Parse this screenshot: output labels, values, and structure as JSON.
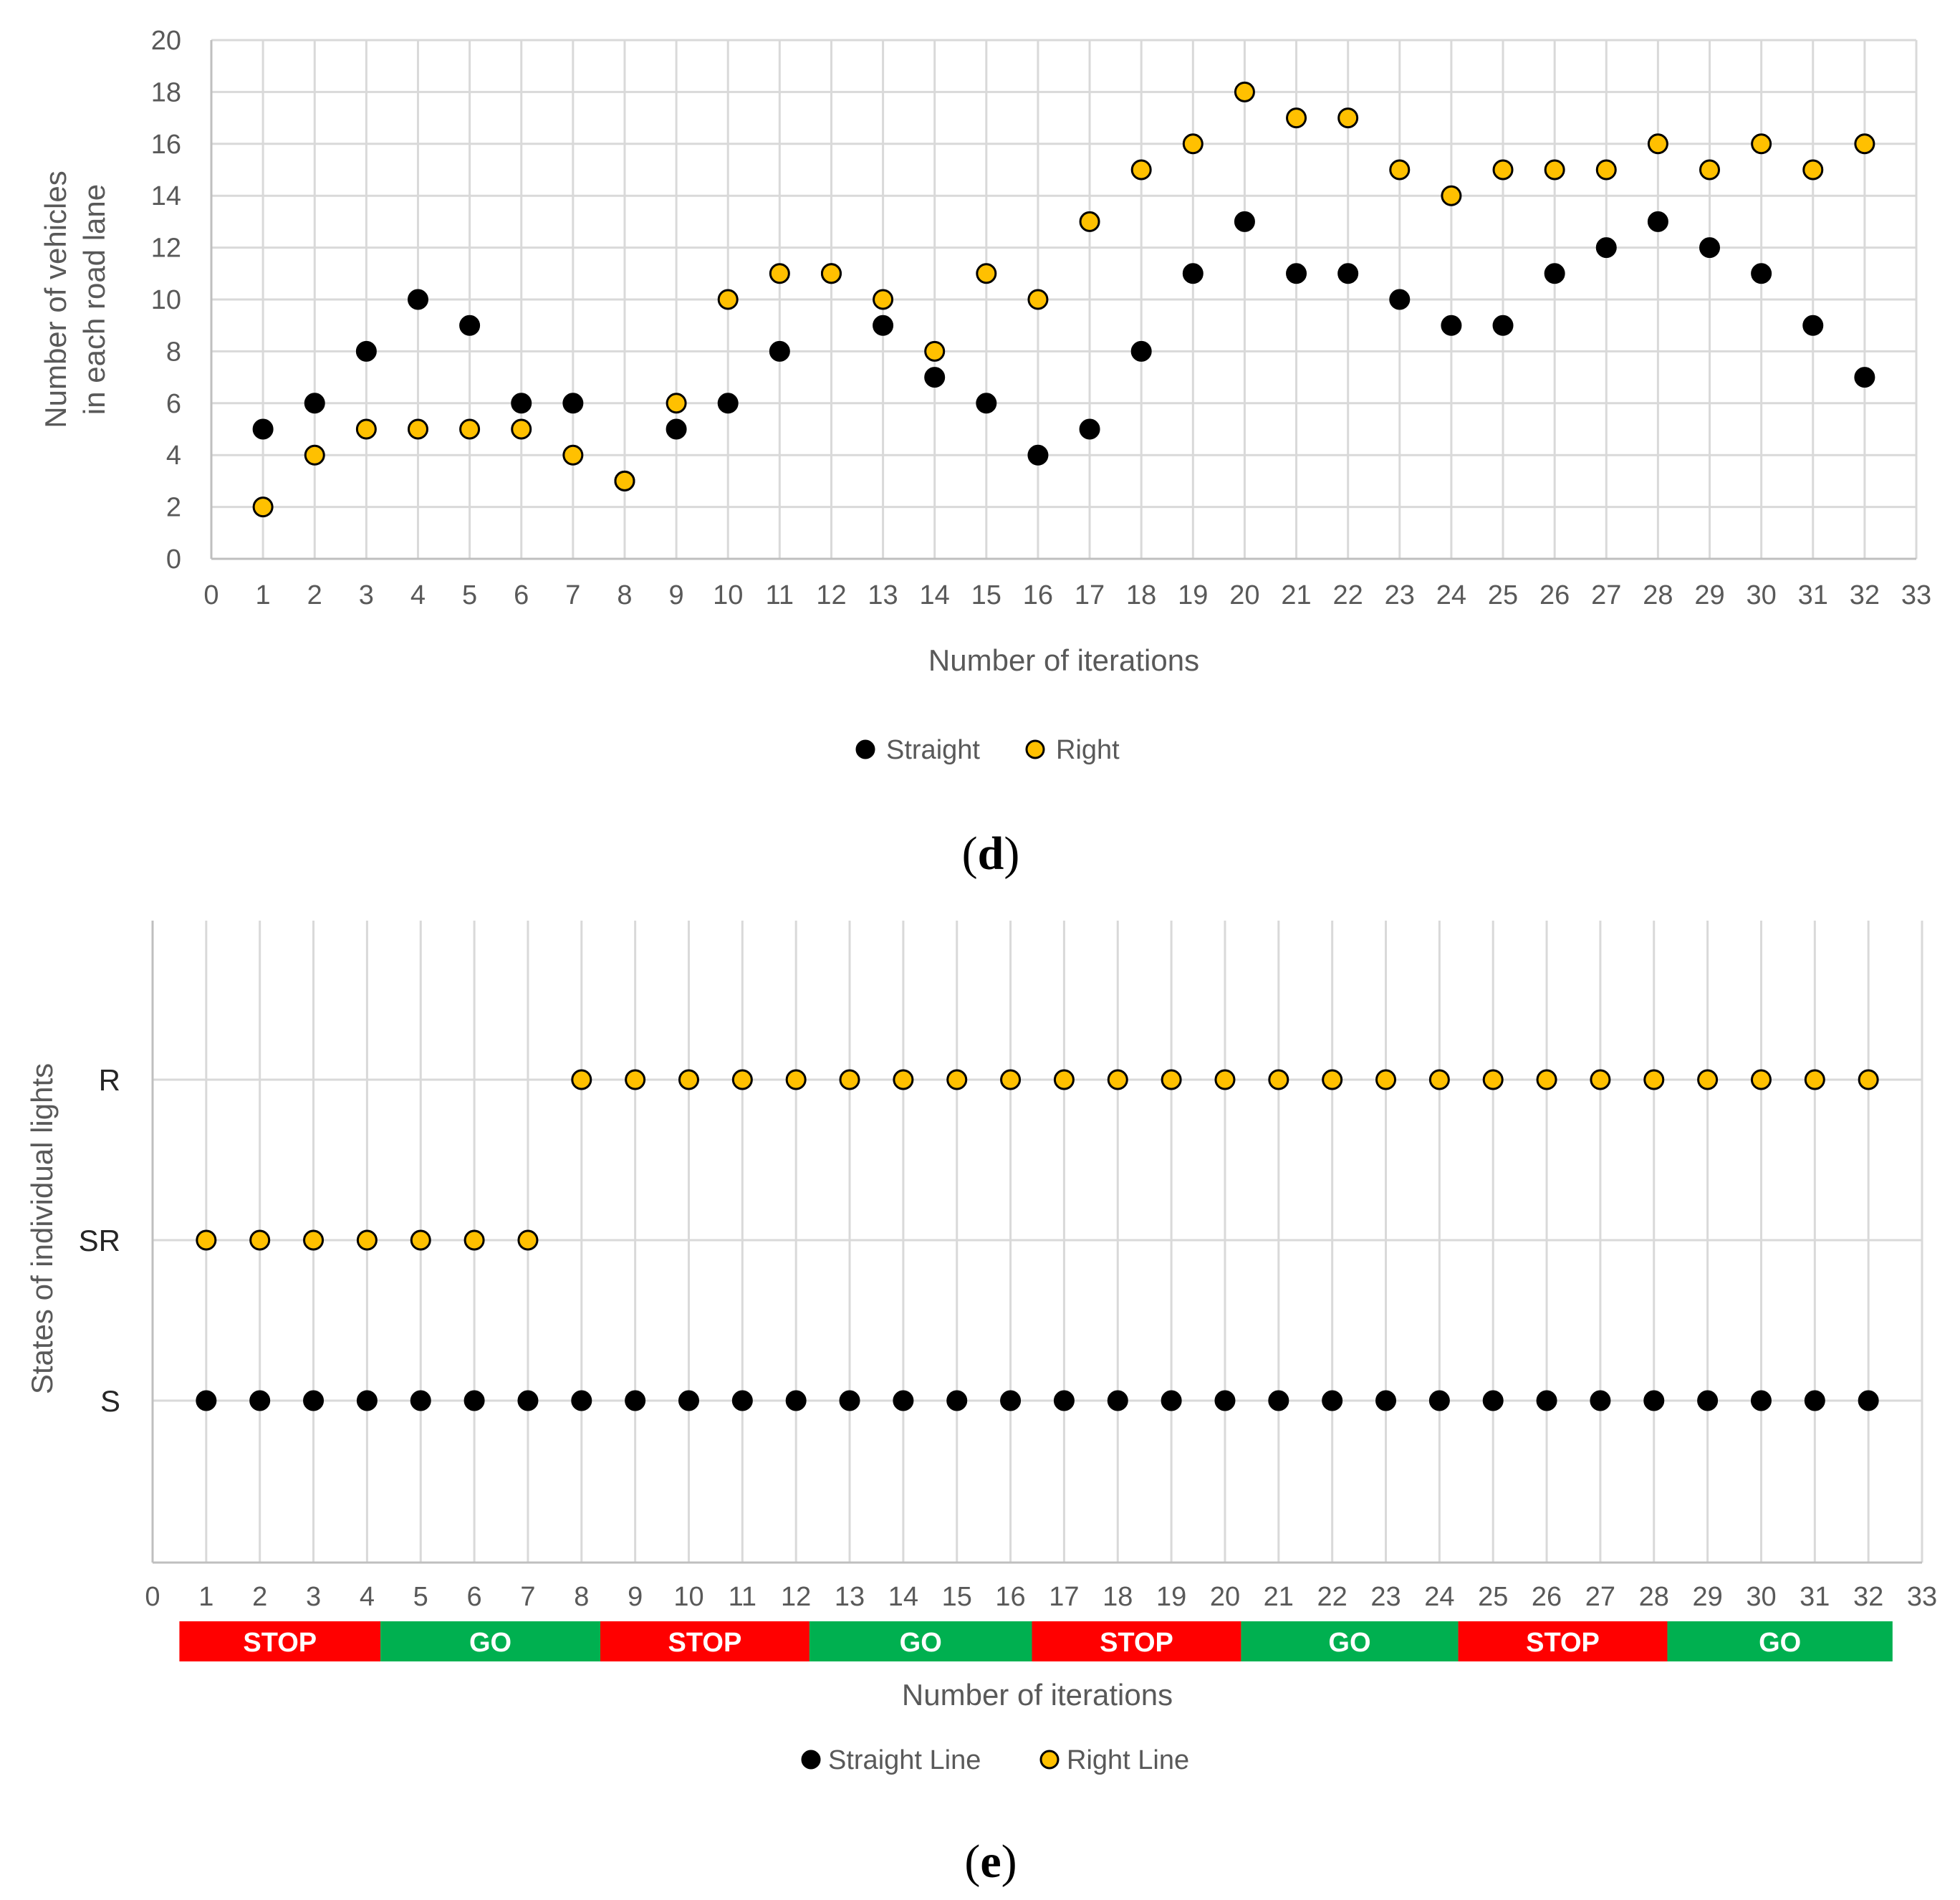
{
  "chart_data": [
    {
      "panel": "d",
      "panel_label_open": "(",
      "panel_label_letter": "d",
      "panel_label_close": ")",
      "type": "scatter",
      "xlabel": "Number of iterations",
      "ylabel_line1": "Number of vehicles",
      "ylabel_line2": "in each road lane",
      "xlim": [
        0,
        33
      ],
      "ylim": [
        0,
        20
      ],
      "x_ticks": [
        0,
        1,
        2,
        3,
        4,
        5,
        6,
        7,
        8,
        9,
        10,
        11,
        12,
        13,
        14,
        15,
        16,
        17,
        18,
        19,
        20,
        21,
        22,
        23,
        24,
        25,
        26,
        27,
        28,
        29,
        30,
        31,
        32,
        33
      ],
      "y_ticks": [
        0,
        2,
        4,
        6,
        8,
        10,
        12,
        14,
        16,
        18,
        20
      ],
      "grid": true,
      "legend_position": "bottom",
      "x": [
        1,
        2,
        3,
        4,
        5,
        6,
        7,
        8,
        9,
        10,
        11,
        12,
        13,
        14,
        15,
        16,
        17,
        18,
        19,
        20,
        21,
        22,
        23,
        24,
        25,
        26,
        27,
        28,
        29,
        30,
        31,
        32
      ],
      "series": [
        {
          "name": "Straight",
          "color": "#000000",
          "values": [
            5,
            6,
            8,
            10,
            9,
            6,
            6,
            3,
            5,
            6,
            8,
            11,
            9,
            7,
            6,
            4,
            5,
            8,
            11,
            13,
            11,
            11,
            10,
            9,
            9,
            11,
            12,
            13,
            12,
            11,
            9,
            7
          ]
        },
        {
          "name": "Right",
          "color": "#ffc000",
          "values": [
            2,
            4,
            5,
            5,
            5,
            5,
            4,
            3,
            6,
            10,
            11,
            11,
            10,
            8,
            11,
            10,
            13,
            15,
            16,
            18,
            17,
            17,
            15,
            14,
            15,
            15,
            15,
            16,
            15,
            16,
            15,
            16
          ]
        }
      ]
    },
    {
      "panel": "e",
      "panel_label_open": "(",
      "panel_label_letter": "e",
      "panel_label_close": ")",
      "type": "scatter",
      "xlabel": "Number of iterations",
      "ylabel": "States of individual lights",
      "xlim": [
        0,
        33
      ],
      "y_categories": [
        "S",
        "SR",
        "R"
      ],
      "x_ticks": [
        0,
        1,
        2,
        3,
        4,
        5,
        6,
        7,
        8,
        9,
        10,
        11,
        12,
        13,
        14,
        15,
        16,
        17,
        18,
        19,
        20,
        21,
        22,
        23,
        24,
        25,
        26,
        27,
        28,
        29,
        30,
        31,
        32,
        33
      ],
      "grid": true,
      "legend_position": "bottom",
      "x": [
        1,
        2,
        3,
        4,
        5,
        6,
        7,
        8,
        9,
        10,
        11,
        12,
        13,
        14,
        15,
        16,
        17,
        18,
        19,
        20,
        21,
        22,
        23,
        24,
        25,
        26,
        27,
        28,
        29,
        30,
        31,
        32
      ],
      "series": [
        {
          "name": "Straight Line",
          "color": "#000000",
          "values": [
            "S",
            "S",
            "S",
            "S",
            "S",
            "S",
            "S",
            "S",
            "S",
            "S",
            "S",
            "S",
            "S",
            "S",
            "S",
            "S",
            "S",
            "S",
            "S",
            "S",
            "S",
            "S",
            "S",
            "S",
            "S",
            "S",
            "S",
            "S",
            "S",
            "S",
            "S",
            "S"
          ]
        },
        {
          "name": "Right Line",
          "color": "#ffc000",
          "values": [
            "SR",
            "SR",
            "SR",
            "SR",
            "SR",
            "SR",
            "SR",
            "R",
            "R",
            "R",
            "R",
            "R",
            "R",
            "R",
            "R",
            "R",
            "R",
            "R",
            "R",
            "R",
            "R",
            "R",
            "R",
            "R",
            "R",
            "R",
            "R",
            "R",
            "R",
            "R",
            "R",
            "R"
          ]
        }
      ],
      "phases": [
        {
          "label": "STOP",
          "color": "#ff0000",
          "start": 0.5,
          "end": 4.25
        },
        {
          "label": "GO",
          "color": "#00b050",
          "start": 4.25,
          "end": 8.35
        },
        {
          "label": "STOP",
          "color": "#ff0000",
          "start": 8.35,
          "end": 12.25
        },
        {
          "label": "GO",
          "color": "#00b050",
          "start": 12.25,
          "end": 16.4
        },
        {
          "label": "STOP",
          "color": "#ff0000",
          "start": 16.4,
          "end": 20.3
        },
        {
          "label": "GO",
          "color": "#00b050",
          "start": 20.3,
          "end": 24.35
        },
        {
          "label": "STOP",
          "color": "#ff0000",
          "start": 24.35,
          "end": 28.25
        },
        {
          "label": "GO",
          "color": "#00b050",
          "start": 28.25,
          "end": 32.45
        }
      ]
    }
  ]
}
